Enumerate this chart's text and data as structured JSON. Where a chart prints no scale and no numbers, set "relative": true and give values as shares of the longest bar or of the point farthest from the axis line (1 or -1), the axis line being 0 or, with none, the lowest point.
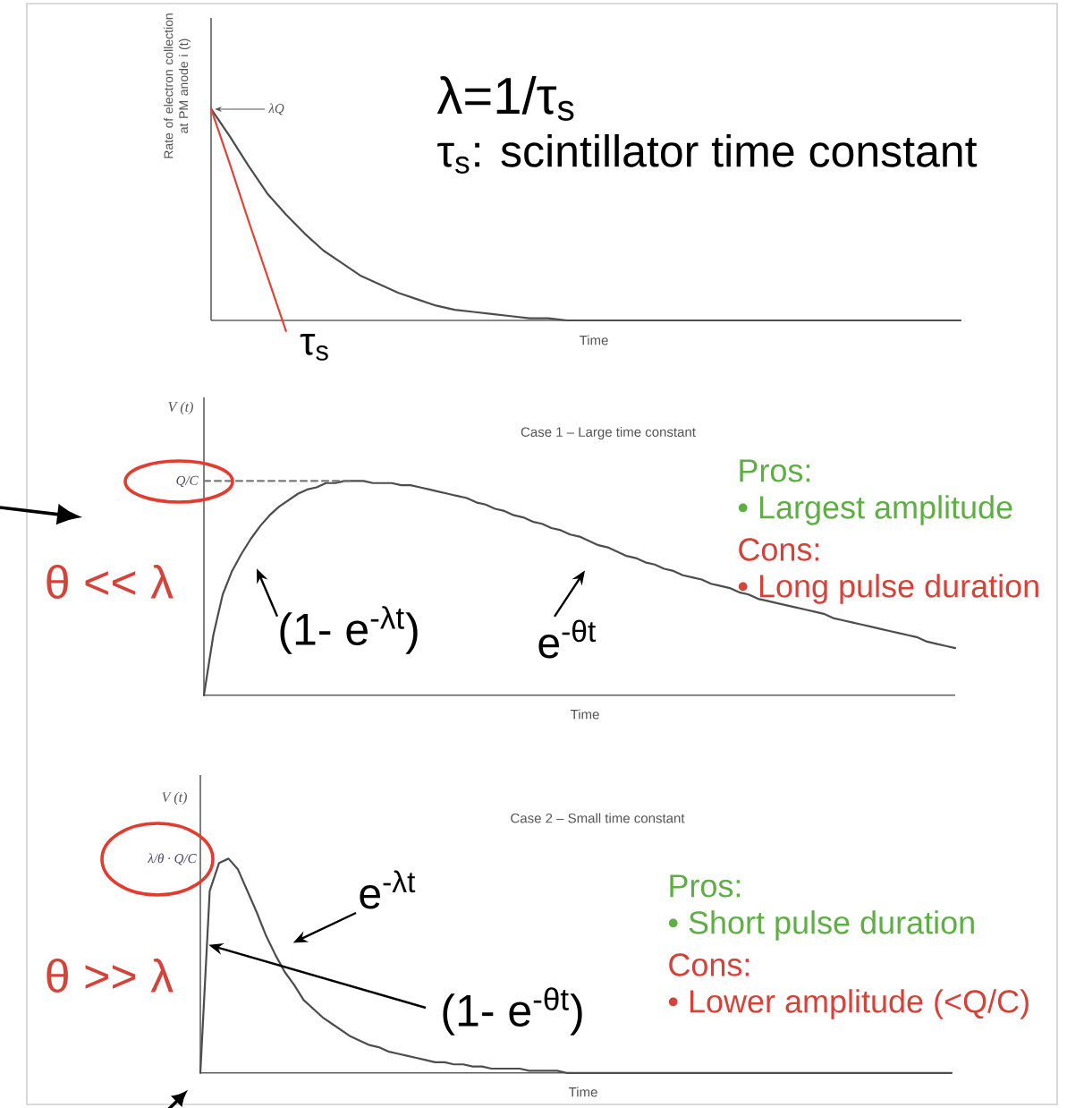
{
  "chart_data": [
    {
      "type": "line",
      "relative": true,
      "xlabel": "Time",
      "ylabel": "Rate of electron collection at PM anode i (t)",
      "categories": [
        null,
        null,
        null,
        null,
        null,
        null,
        null,
        null,
        null,
        null,
        null,
        null,
        null,
        null,
        null,
        null,
        null,
        null,
        null,
        null,
        null,
        null,
        null,
        null,
        null,
        null,
        null,
        null,
        null,
        null,
        null,
        null,
        null,
        null,
        null,
        null,
        null,
        null,
        null,
        null,
        null
      ],
      "series": [
        {
          "color": "#4d4d4d",
          "values": [
            1.0,
            0.87,
            0.73,
            0.6,
            0.5,
            0.41,
            0.33,
            0.27,
            0.21,
            0.17,
            0.13,
            0.1,
            0.07,
            0.05,
            0.04,
            0.03,
            0.02,
            0.01,
            0.01,
            0,
            0,
            0,
            0,
            0,
            0,
            0,
            0,
            0,
            0,
            0,
            0,
            0,
            0,
            0,
            0,
            0,
            0,
            0,
            0,
            0,
            0
          ]
        },
        {
          "color": "#e0453a",
          "values": [
            1.0,
            0.74,
            0.47,
            0.21,
            -0.05,
            null,
            null,
            null,
            null,
            null,
            null,
            null,
            null,
            null,
            null,
            null,
            null,
            null,
            null,
            null,
            null,
            null,
            null,
            null,
            null,
            null,
            null,
            null,
            null,
            null,
            null,
            null,
            null,
            null,
            null,
            null,
            null,
            null,
            null,
            null,
            null
          ]
        }
      ],
      "annotations": [
        "λ=1/τ$_{s}$",
        "τ$_{s}$: scintillator time constant",
        "λQ",
        "τ$_{s}$"
      ]
    },
    {
      "type": "line",
      "relative": true,
      "title": "Case 1 – Large time constant",
      "xlabel": "Time",
      "ylabel": "V (t)",
      "categories": [
        null,
        null,
        null,
        null,
        null,
        null,
        null,
        null,
        null,
        null,
        null,
        null,
        null,
        null,
        null,
        null,
        null,
        null,
        null,
        null,
        null,
        null,
        null,
        null,
        null,
        null,
        null,
        null,
        null,
        null,
        null,
        null,
        null,
        null,
        null,
        null,
        null,
        null,
        null,
        null,
        null,
        null,
        null,
        null,
        null,
        null,
        null,
        null,
        null,
        null,
        null,
        null,
        null,
        null,
        null,
        null,
        null,
        null,
        null,
        null,
        null,
        null,
        null,
        null,
        null,
        null,
        null,
        null,
        null,
        null,
        null,
        null,
        null,
        null,
        null,
        null,
        null,
        null,
        null,
        null,
        null
      ],
      "series": [
        {
          "color": "#4d4d4d",
          "values": [
            0,
            0.28,
            0.47,
            0.58,
            0.66,
            0.73,
            0.79,
            0.84,
            0.88,
            0.91,
            0.94,
            0.96,
            0.97,
            0.99,
            0.99,
            1.0,
            1.0,
            1.0,
            0.99,
            0.99,
            0.99,
            0.98,
            0.98,
            0.97,
            0.96,
            0.95,
            0.94,
            0.93,
            0.92,
            0.9,
            0.89,
            0.87,
            0.86,
            0.84,
            0.83,
            0.81,
            0.8,
            0.78,
            0.77,
            0.75,
            0.74,
            0.72,
            0.7,
            0.69,
            0.67,
            0.65,
            0.64,
            0.62,
            0.61,
            0.59,
            0.58,
            0.56,
            0.55,
            0.54,
            0.52,
            0.51,
            0.5,
            0.48,
            0.47,
            0.45,
            0.44,
            0.43,
            0.42,
            0.41,
            0.4,
            0.39,
            0.38,
            0.36,
            0.35,
            0.34,
            0.33,
            0.32,
            0.31,
            0.3,
            0.29,
            0.28,
            0.27,
            0.25,
            0.24,
            0.23,
            0.22
          ]
        },
        {
          "color": "#7a7a7a",
          "line_style": "dashed",
          "values": [
            1,
            1,
            1,
            1,
            1,
            1,
            1,
            1,
            1,
            1,
            1,
            1,
            1,
            1,
            1,
            1,
            1,
            null,
            null,
            null,
            null,
            null,
            null,
            null,
            null,
            null,
            null,
            null,
            null,
            null,
            null,
            null,
            null,
            null,
            null,
            null,
            null,
            null,
            null,
            null,
            null,
            null,
            null,
            null,
            null,
            null,
            null,
            null,
            null,
            null,
            null,
            null,
            null,
            null,
            null,
            null,
            null,
            null,
            null,
            null,
            null,
            null,
            null,
            null,
            null,
            null,
            null,
            null,
            null,
            null,
            null,
            null,
            null,
            null,
            null,
            null,
            null,
            null,
            null,
            null,
            null
          ]
        }
      ],
      "annotations": [
        "Q/C",
        "θ << λ",
        "(1- e$^{-λt}$)",
        "e$^{-θt}$",
        "Pros:",
        "• Largest amplitude",
        "Cons:",
        "• Long pulse duration"
      ]
    },
    {
      "type": "line",
      "relative": true,
      "title": "Case 2 – Small time constant",
      "xlabel": "Time",
      "ylabel": "V (t)",
      "categories": [
        null,
        null,
        null,
        null,
        null,
        null,
        null,
        null,
        null,
        null,
        null,
        null,
        null,
        null,
        null,
        null,
        null,
        null,
        null,
        null,
        null,
        null,
        null,
        null,
        null,
        null,
        null,
        null,
        null,
        null,
        null,
        null,
        null,
        null,
        null,
        null,
        null,
        null,
        null,
        null,
        null,
        null,
        null,
        null,
        null,
        null,
        null,
        null,
        null,
        null,
        null,
        null,
        null,
        null,
        null,
        null,
        null,
        null,
        null,
        null,
        null,
        null,
        null,
        null,
        null,
        null,
        null,
        null,
        null,
        null,
        null,
        null,
        null,
        null,
        null,
        null,
        null,
        null,
        null,
        null,
        null
      ],
      "series": [
        {
          "color": "#4d4d4d",
          "values": [
            0,
            0.85,
            0.98,
            1.0,
            0.95,
            0.85,
            0.75,
            0.64,
            0.55,
            0.47,
            0.41,
            0.34,
            0.3,
            0.26,
            0.23,
            0.2,
            0.17,
            0.15,
            0.13,
            0.12,
            0.1,
            0.09,
            0.08,
            0.07,
            0.06,
            0.05,
            0.05,
            0.04,
            0.04,
            0.03,
            0.03,
            0.02,
            0.02,
            0.02,
            0.02,
            0.01,
            0.01,
            0.01,
            0.01,
            0,
            0,
            0,
            0,
            0,
            0,
            0,
            0,
            0,
            0,
            0,
            0,
            0,
            0,
            0,
            0,
            0,
            0,
            0,
            0,
            0,
            0,
            0,
            0,
            0,
            0,
            0,
            0,
            0,
            0,
            0,
            0,
            0,
            0,
            0,
            0,
            0,
            0,
            0,
            0,
            0,
            0
          ]
        }
      ],
      "annotations": [
        "λ/θ · Q/C",
        "θ >> λ",
        "e$^{-λt}$",
        "(1- e$^{-θt}$)",
        "Pros:",
        "• Short pulse duration",
        "Cons:",
        "• Lower amplitude (<Q/C)"
      ]
    }
  ]
}
